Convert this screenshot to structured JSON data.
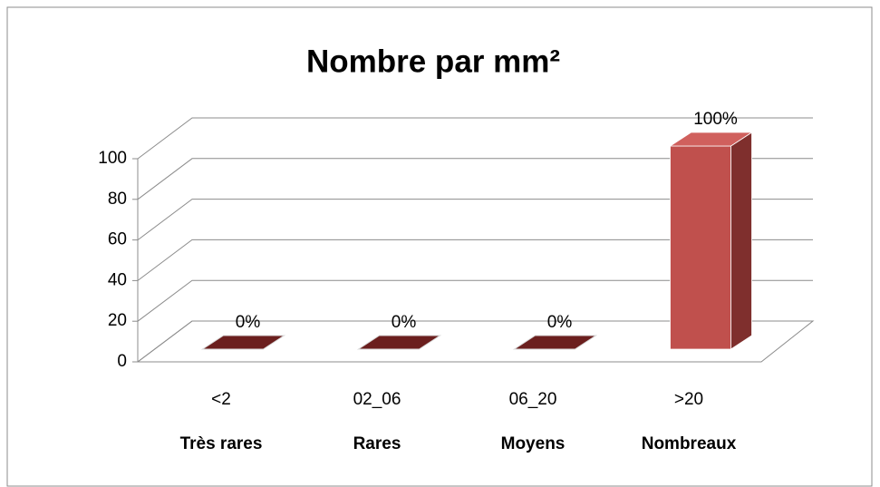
{
  "chart_data": {
    "type": "bar3d",
    "title": "Nombre par mm²",
    "categories": [
      "<2",
      "02_06",
      "06_20",
      ">20"
    ],
    "category_groups": [
      "Très rares",
      "Rares",
      "Moyens",
      "Nombreaux"
    ],
    "values": [
      0,
      0,
      0,
      100
    ],
    "value_labels": [
      "0%",
      "0%",
      "0%",
      "100%"
    ],
    "color": "#c0504d",
    "ylim": [
      0,
      100
    ],
    "yticks": [
      0,
      20,
      40,
      60,
      80,
      100
    ],
    "grid": true
  }
}
